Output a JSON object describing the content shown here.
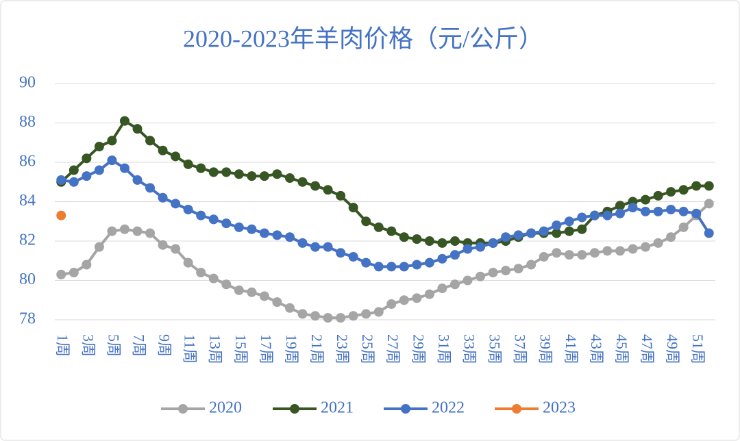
{
  "chart_data": {
    "type": "line",
    "title": "2020-2023年羊肉价格（元/公斤）",
    "categories": [
      "1周",
      null,
      "3周",
      null,
      "5周",
      null,
      "7周",
      null,
      "9周",
      null,
      "11周",
      null,
      "13周",
      null,
      "15周",
      null,
      "17周",
      null,
      "19周",
      null,
      "21周",
      null,
      "23周",
      null,
      "25周",
      null,
      "27周",
      null,
      "29周",
      null,
      "31周",
      null,
      "33周",
      null,
      "35周",
      null,
      "37周",
      null,
      "39周",
      null,
      "41周",
      null,
      "43周",
      null,
      "45周",
      null,
      "47周",
      null,
      "49周",
      null,
      "51周",
      null
    ],
    "series": [
      {
        "name": "2020",
        "color": "#a5a5a5",
        "values": [
          80.3,
          80.4,
          80.8,
          81.7,
          82.5,
          82.6,
          82.5,
          82.4,
          81.8,
          81.6,
          80.9,
          80.4,
          80.1,
          79.8,
          79.5,
          79.4,
          79.2,
          78.9,
          78.6,
          78.3,
          78.2,
          78.1,
          78.1,
          78.2,
          78.3,
          78.4,
          78.8,
          79.0,
          79.1,
          79.3,
          79.6,
          79.8,
          80.0,
          80.2,
          80.4,
          80.5,
          80.6,
          80.8,
          81.2,
          81.4,
          81.3,
          81.3,
          81.4,
          81.5,
          81.5,
          81.6,
          81.7,
          81.9,
          82.2,
          82.7,
          83.3,
          83.9
        ]
      },
      {
        "name": "2021",
        "color": "#375623",
        "values": [
          85.0,
          85.6,
          86.2,
          86.8,
          87.1,
          88.1,
          87.7,
          87.1,
          86.6,
          86.3,
          85.9,
          85.7,
          85.5,
          85.5,
          85.4,
          85.3,
          85.3,
          85.4,
          85.2,
          85.0,
          84.8,
          84.6,
          84.3,
          83.7,
          83.0,
          82.7,
          82.5,
          82.2,
          82.1,
          82.0,
          81.9,
          82.0,
          81.9,
          81.9,
          81.9,
          82.0,
          82.2,
          82.4,
          82.4,
          82.4,
          82.5,
          82.6,
          83.3,
          83.5,
          83.8,
          84.0,
          84.1,
          84.3,
          84.5,
          84.6,
          84.8,
          84.8
        ]
      },
      {
        "name": "2022",
        "color": "#4472c4",
        "values": [
          85.1,
          85.0,
          85.3,
          85.6,
          86.1,
          85.7,
          85.1,
          84.7,
          84.2,
          83.9,
          83.6,
          83.3,
          83.1,
          82.9,
          82.7,
          82.6,
          82.4,
          82.3,
          82.2,
          81.9,
          81.7,
          81.7,
          81.4,
          81.2,
          80.9,
          80.7,
          80.7,
          80.7,
          80.8,
          80.9,
          81.1,
          81.3,
          81.6,
          81.7,
          81.9,
          82.2,
          82.3,
          82.4,
          82.5,
          82.8,
          83.0,
          83.2,
          83.3,
          83.3,
          83.4,
          83.7,
          83.5,
          83.5,
          83.6,
          83.5,
          83.4,
          82.4
        ]
      },
      {
        "name": "2023",
        "color": "#ed7d31",
        "values": [
          83.3,
          null,
          null,
          null,
          null,
          null,
          null,
          null,
          null,
          null,
          null,
          null,
          null,
          null,
          null,
          null,
          null,
          null,
          null,
          null,
          null,
          null,
          null,
          null,
          null,
          null,
          null,
          null,
          null,
          null,
          null,
          null,
          null,
          null,
          null,
          null,
          null,
          null,
          null,
          null,
          null,
          null,
          null,
          null,
          null,
          null,
          null,
          null,
          null,
          null,
          null,
          null
        ]
      }
    ],
    "ylim": [
      78,
      90
    ],
    "yticks": [
      78,
      80,
      82,
      84,
      86,
      88,
      90
    ],
    "grid": true,
    "legend": "bottom"
  }
}
